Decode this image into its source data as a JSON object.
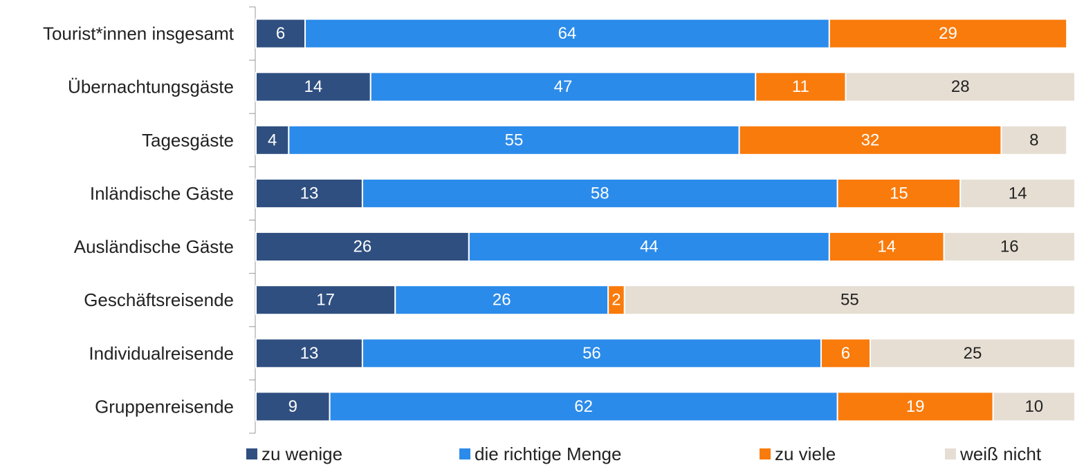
{
  "chart_data": {
    "type": "stacked-bar-horizontal",
    "categories": [
      "Tourist*innen insgesamt",
      "Übernachtungsgäste",
      "Tagesgäste",
      "Inländische Gäste",
      "Ausländische Gäste",
      "Geschäftsreisende",
      "Individualreisende",
      "Gruppenreisende"
    ],
    "series": [
      {
        "name": "zu wenige",
        "color": "#2f4f80",
        "values": [
          6,
          14,
          4,
          13,
          26,
          17,
          13,
          9
        ]
      },
      {
        "name": "die richtige Menge",
        "color": "#2b8bea",
        "values": [
          64,
          47,
          55,
          58,
          44,
          26,
          56,
          62
        ]
      },
      {
        "name": "zu viele",
        "color": "#f97b0c",
        "values": [
          29,
          11,
          32,
          15,
          14,
          2,
          6,
          19
        ]
      },
      {
        "name": "weiß nicht",
        "color": "#e6ded3",
        "values": [
          null,
          28,
          8,
          14,
          16,
          55,
          25,
          10
        ]
      }
    ],
    "xlim": [
      0,
      100
    ],
    "legend": "bottom"
  }
}
